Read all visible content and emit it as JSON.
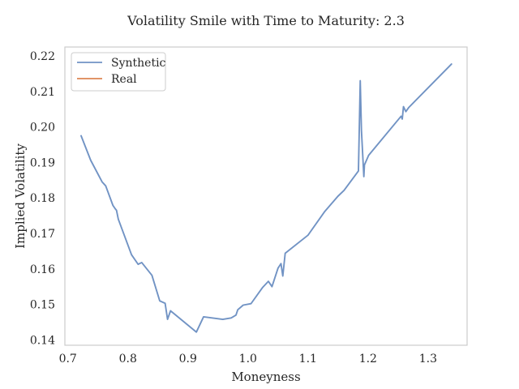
{
  "chart_data": {
    "type": "line",
    "title": "Volatility Smile with Time to Maturity: 2.3",
    "xlabel": "Moneyness",
    "ylabel": "Implied Volatility",
    "xlim": [
      0.695,
      1.365
    ],
    "ylim": [
      0.1385,
      0.2225
    ],
    "x_ticks": [
      0.7,
      0.8,
      0.9,
      1.0,
      1.1,
      1.2,
      1.3
    ],
    "x_tick_labels": [
      "0.7",
      "0.8",
      "0.9",
      "1.0",
      "1.1",
      "1.2",
      "1.3"
    ],
    "y_ticks": [
      0.14,
      0.15,
      0.16,
      0.17,
      0.18,
      0.19,
      0.2,
      0.21,
      0.22
    ],
    "y_tick_labels": [
      "0.14",
      "0.15",
      "0.16",
      "0.17",
      "0.18",
      "0.19",
      "0.20",
      "0.21",
      "0.22"
    ],
    "grid": false,
    "legend_position": "top-left",
    "series": [
      {
        "name": "Synthetic",
        "color": "#7193c4",
        "x": [
          0.722,
          0.738,
          0.757,
          0.763,
          0.775,
          0.779,
          0.781,
          0.784,
          0.806,
          0.817,
          0.823,
          0.84,
          0.853,
          0.862,
          0.866,
          0.871,
          0.914,
          0.926,
          0.958,
          0.972,
          0.98,
          0.983,
          0.992,
          1.005,
          1.024,
          1.034,
          1.04,
          1.05,
          1.055,
          1.058,
          1.062,
          1.1,
          1.128,
          1.15,
          1.16,
          1.184,
          1.187,
          1.189,
          1.193,
          1.194,
          1.201,
          1.255,
          1.257,
          1.259,
          1.263,
          1.268,
          1.339
        ],
        "y": [
          0.1975,
          0.1906,
          0.1845,
          0.1834,
          0.1779,
          0.1769,
          0.1765,
          0.174,
          0.164,
          0.1613,
          0.1618,
          0.1582,
          0.151,
          0.1503,
          0.1458,
          0.1482,
          0.1422,
          0.1465,
          0.1458,
          0.1462,
          0.147,
          0.1485,
          0.1498,
          0.1502,
          0.1547,
          0.1565,
          0.155,
          0.1602,
          0.1615,
          0.158,
          0.1644,
          0.1695,
          0.1762,
          0.1805,
          0.1821,
          0.1876,
          0.213,
          0.199,
          0.186,
          0.1893,
          0.192,
          0.203,
          0.2022,
          0.2057,
          0.2043,
          0.2055,
          0.2177
        ]
      },
      {
        "name": "Real",
        "color": "#dd8452",
        "x": [],
        "y": []
      }
    ]
  }
}
